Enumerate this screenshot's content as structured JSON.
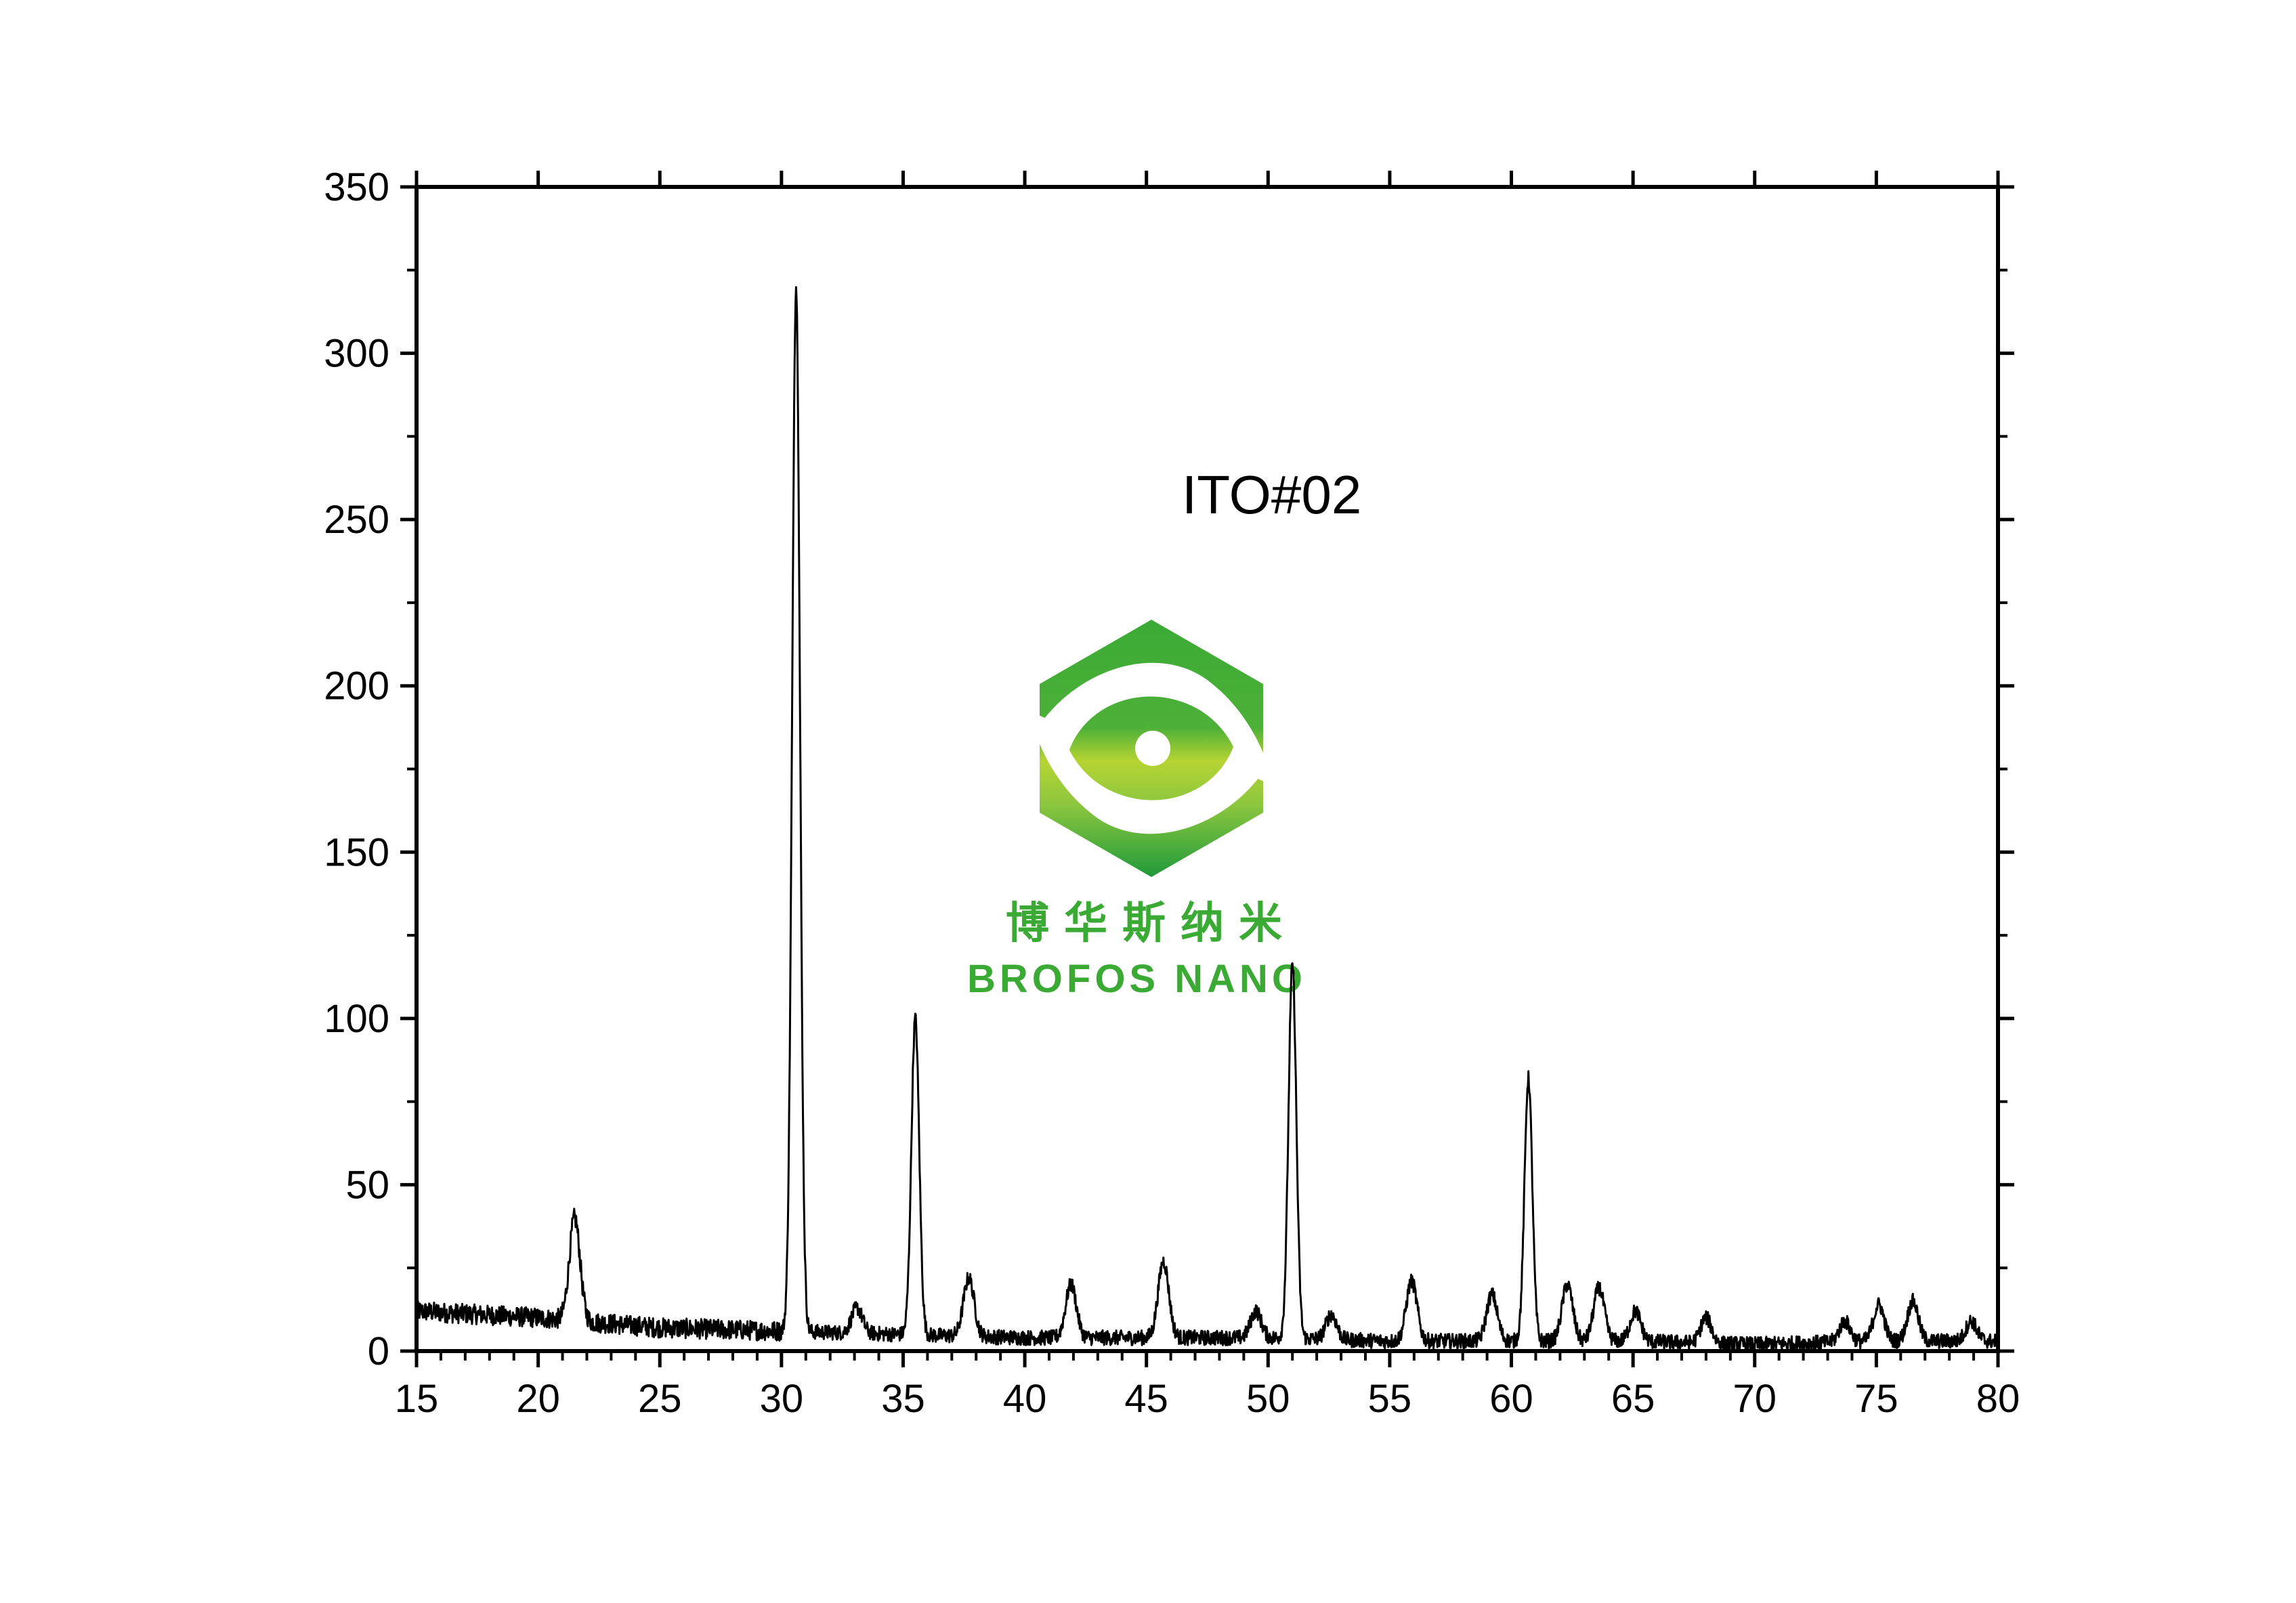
{
  "chart_data": {
    "type": "line",
    "title": "ITO#02",
    "xlabel": "",
    "ylabel": "",
    "xlim": [
      15,
      80
    ],
    "ylim": [
      0,
      350
    ],
    "x_ticks": [
      15,
      20,
      25,
      30,
      35,
      40,
      45,
      50,
      55,
      60,
      65,
      70,
      75,
      80
    ],
    "y_ticks": [
      0,
      50,
      100,
      150,
      200,
      250,
      300,
      350
    ],
    "grid": false,
    "legend": "none",
    "series": [
      {
        "color": "#000000",
        "baseline": [
          [
            15,
            12
          ],
          [
            20,
            10
          ],
          [
            25,
            7
          ],
          [
            30,
            6
          ],
          [
            35,
            5
          ],
          [
            40,
            4
          ],
          [
            45,
            4
          ],
          [
            50,
            4
          ],
          [
            55,
            3
          ],
          [
            60,
            3
          ],
          [
            65,
            3
          ],
          [
            70,
            2
          ],
          [
            75,
            3
          ],
          [
            80,
            3
          ]
        ],
        "peaks": [
          {
            "x": 21.5,
            "y": 40
          },
          {
            "x": 30.6,
            "y": 320
          },
          {
            "x": 33.1,
            "y": 13
          },
          {
            "x": 35.5,
            "y": 100
          },
          {
            "x": 37.7,
            "y": 22
          },
          {
            "x": 41.9,
            "y": 20
          },
          {
            "x": 45.7,
            "y": 27
          },
          {
            "x": 49.5,
            "y": 12
          },
          {
            "x": 51.0,
            "y": 116
          },
          {
            "x": 52.6,
            "y": 11
          },
          {
            "x": 55.9,
            "y": 21
          },
          {
            "x": 59.2,
            "y": 17
          },
          {
            "x": 60.7,
            "y": 82
          },
          {
            "x": 62.3,
            "y": 20
          },
          {
            "x": 63.6,
            "y": 19
          },
          {
            "x": 65.1,
            "y": 12
          },
          {
            "x": 68.0,
            "y": 10
          },
          {
            "x": 73.7,
            "y": 9
          },
          {
            "x": 75.1,
            "y": 14
          },
          {
            "x": 76.5,
            "y": 15
          },
          {
            "x": 78.9,
            "y": 9
          }
        ]
      }
    ]
  },
  "logo": {
    "name_cn": "博华斯纳米",
    "name_en": "BROFOS NANO",
    "colors": {
      "green": "#3aaa35",
      "dark_green": "#1f9a3a",
      "yellow_green": "#b6d433"
    }
  }
}
